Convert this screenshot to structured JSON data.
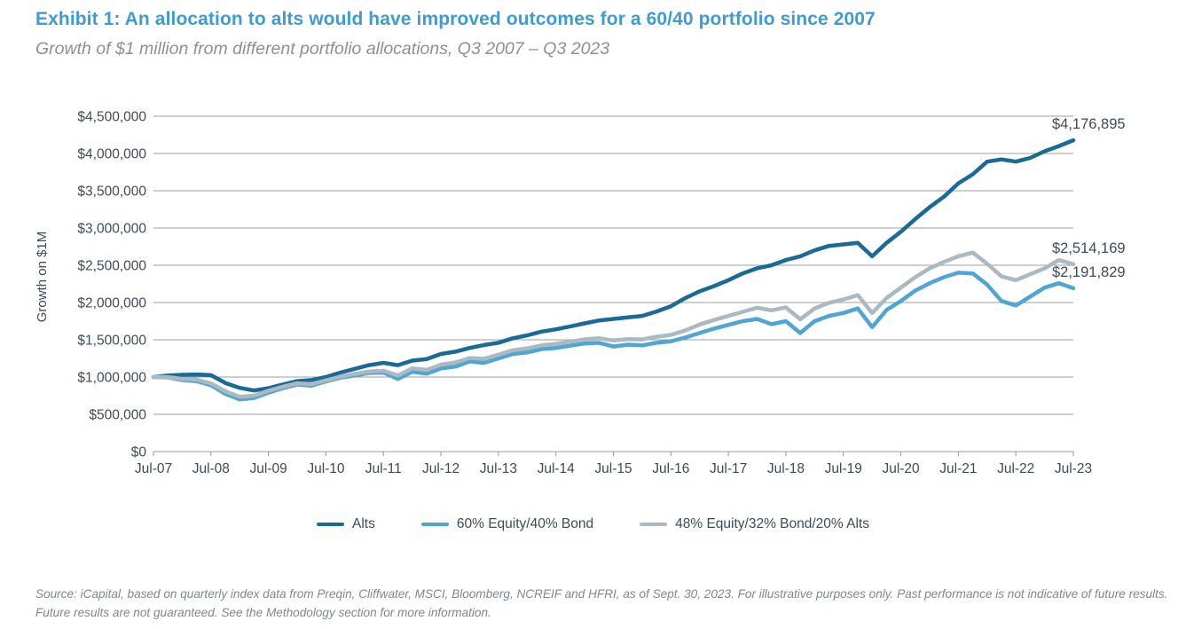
{
  "page": {
    "title": "Exhibit 1: An allocation to alts would have improved outcomes for a 60/40 portfolio since 2007",
    "subtitle": "Growth of $1 million from different portfolio allocations, Q3 2007 – Q3 2023",
    "source_note": "Source: iCapital, based on quarterly index data from Preqin, Cliffwater, MSCI, Bloomberg, NCREIF and HFRI, as of Sept. 30, 2023. For illustrative purposes only. Past performance is not indicative of future results. Future results are not guaranteed. See the Methodology section for more information."
  },
  "colors": {
    "title_blue": "#3f9bd4",
    "subtitle_gray": "#8b9196",
    "axis_text": "#3f4b57",
    "gridline": "#9b9fa3",
    "annotation_text": "#3f4b57",
    "source_gray": "#7e8890",
    "alts_line": "#1a6a98",
    "equity_bond_line": "#4fa5d3",
    "blend_line": "#aab9c2"
  },
  "chart_data": {
    "type": "line",
    "title": "Exhibit 1: An allocation to alts would have improved outcomes for a 60/40 portfolio since 2007",
    "subtitle": "Growth of $1 million from different portfolio allocations, Q3 2007 – Q3 2023",
    "xlabel": "",
    "ylabel": "Growth on $1M",
    "x_frequency": "quarterly",
    "x_range": [
      "Q3 2007",
      "Q3 2023"
    ],
    "ylim": [
      0,
      4500000
    ],
    "grid": "horizontal",
    "legend_position": "bottom",
    "y_ticks": [
      {
        "value": 0,
        "label": "$0"
      },
      {
        "value": 500000,
        "label": "$500,000"
      },
      {
        "value": 1000000,
        "label": "$1,000,000"
      },
      {
        "value": 1500000,
        "label": "$1,500,000"
      },
      {
        "value": 2000000,
        "label": "$2,000,000"
      },
      {
        "value": 2500000,
        "label": "$2,500,000"
      },
      {
        "value": 3000000,
        "label": "$3,000,000"
      },
      {
        "value": 3500000,
        "label": "$3,500,000"
      },
      {
        "value": 4000000,
        "label": "$4,000,000"
      },
      {
        "value": 4500000,
        "label": "$4,500,000"
      }
    ],
    "x_ticks": [
      {
        "index": 0,
        "label": "Jul-07"
      },
      {
        "index": 4,
        "label": "Jul-08"
      },
      {
        "index": 8,
        "label": "Jul-09"
      },
      {
        "index": 12,
        "label": "Jul-10"
      },
      {
        "index": 16,
        "label": "Jul-11"
      },
      {
        "index": 20,
        "label": "Jul-12"
      },
      {
        "index": 24,
        "label": "Jul-13"
      },
      {
        "index": 28,
        "label": "Jul-14"
      },
      {
        "index": 32,
        "label": "Jul-15"
      },
      {
        "index": 36,
        "label": "Jul-16"
      },
      {
        "index": 40,
        "label": "Jul-17"
      },
      {
        "index": 44,
        "label": "Jul-18"
      },
      {
        "index": 48,
        "label": "Jul-19"
      },
      {
        "index": 52,
        "label": "Jul-20"
      },
      {
        "index": 56,
        "label": "Jul-21"
      },
      {
        "index": 60,
        "label": "Jul-22"
      },
      {
        "index": 64,
        "label": "Jul-23"
      }
    ],
    "series": [
      {
        "name": "Alts",
        "color": "#1a6a98",
        "end_label": "$4,176,895",
        "end_value": 4176895,
        "values": [
          1000000,
          1020000,
          1030000,
          1035000,
          1025000,
          920000,
          855000,
          820000,
          850000,
          900000,
          945000,
          960000,
          1000000,
          1060000,
          1110000,
          1160000,
          1190000,
          1160000,
          1220000,
          1240000,
          1310000,
          1340000,
          1390000,
          1430000,
          1460000,
          1520000,
          1560000,
          1610000,
          1640000,
          1680000,
          1720000,
          1760000,
          1780000,
          1800000,
          1820000,
          1880000,
          1950000,
          2060000,
          2150000,
          2220000,
          2300000,
          2390000,
          2460000,
          2500000,
          2570000,
          2620000,
          2700000,
          2760000,
          2780000,
          2800000,
          2620000,
          2800000,
          2950000,
          3120000,
          3280000,
          3420000,
          3600000,
          3720000,
          3890000,
          3920000,
          3890000,
          3940000,
          4030000,
          4100000,
          4176895
        ]
      },
      {
        "name": "60% Equity/40% Bond",
        "color": "#4fa5d3",
        "end_label": "$2,191,829",
        "end_value": 2191829,
        "values": [
          1000000,
          995000,
          960000,
          945000,
          890000,
          775000,
          700000,
          720000,
          790000,
          850000,
          900000,
          885000,
          940000,
          990000,
          1020000,
          1055000,
          1060000,
          975000,
          1070000,
          1045000,
          1115000,
          1140000,
          1210000,
          1190000,
          1250000,
          1310000,
          1330000,
          1375000,
          1390000,
          1420000,
          1450000,
          1460000,
          1410000,
          1435000,
          1425000,
          1460000,
          1480000,
          1530000,
          1590000,
          1650000,
          1700000,
          1750000,
          1780000,
          1710000,
          1750000,
          1590000,
          1750000,
          1820000,
          1860000,
          1920000,
          1670000,
          1900000,
          2020000,
          2160000,
          2260000,
          2340000,
          2400000,
          2390000,
          2240000,
          2020000,
          1960000,
          2080000,
          2200000,
          2260000,
          2191829
        ]
      },
      {
        "name": "48% Equity/32% Bond/20% Alts",
        "color": "#aab9c2",
        "end_label": "$2,514,169",
        "end_value": 2514169,
        "values": [
          1000000,
          1000000,
          975000,
          965000,
          915000,
          810000,
          735000,
          750000,
          815000,
          870000,
          915000,
          905000,
          955000,
          1005000,
          1040000,
          1075000,
          1085000,
          1020000,
          1115000,
          1095000,
          1165000,
          1195000,
          1255000,
          1245000,
          1300000,
          1360000,
          1385000,
          1425000,
          1445000,
          1475000,
          1505000,
          1520000,
          1490000,
          1510000,
          1505000,
          1540000,
          1565000,
          1625000,
          1705000,
          1765000,
          1820000,
          1875000,
          1930000,
          1895000,
          1935000,
          1775000,
          1920000,
          1995000,
          2040000,
          2100000,
          1860000,
          2060000,
          2200000,
          2340000,
          2460000,
          2545000,
          2620000,
          2670000,
          2520000,
          2350000,
          2300000,
          2380000,
          2460000,
          2570000,
          2514169
        ]
      }
    ]
  }
}
